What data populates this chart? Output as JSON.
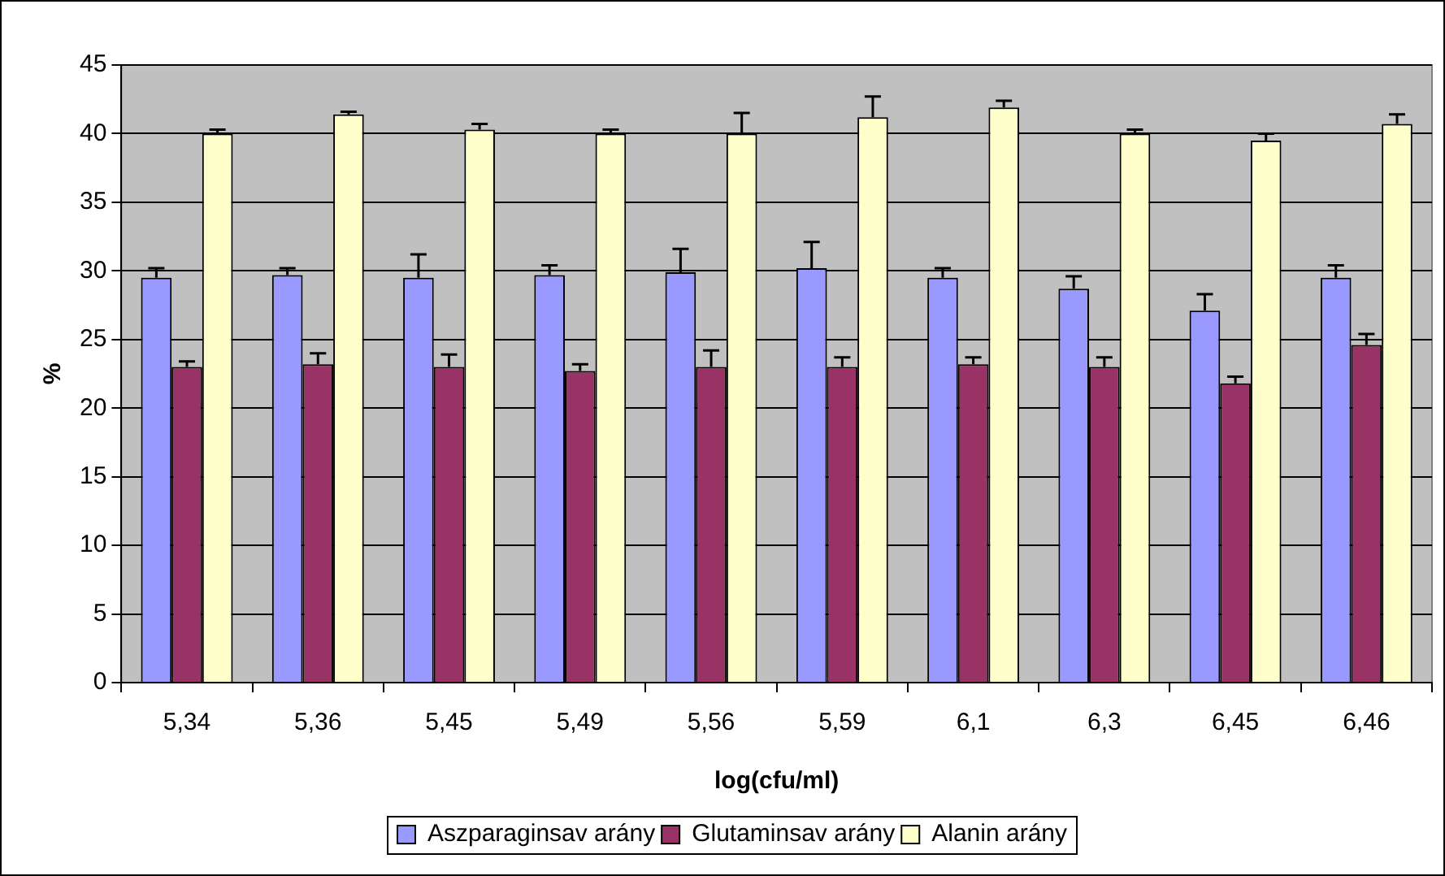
{
  "chart_data": {
    "type": "bar",
    "xlabel": "log(cfu/ml)",
    "ylabel": "%",
    "categories": [
      "5,34",
      "5,36",
      "5,45",
      "5,49",
      "5,56",
      "5,59",
      "6,1",
      "6,3",
      "6,45",
      "6,46"
    ],
    "series": [
      {
        "name": "Aszparaginsav arány",
        "color": "#9999ff",
        "values": [
          29.5,
          29.7,
          29.5,
          29.7,
          29.9,
          30.2,
          29.5,
          28.7,
          27.1,
          29.5
        ],
        "errors": [
          [
            29.5,
            30.2
          ],
          [
            29.7,
            30.2
          ],
          [
            29.5,
            31.2
          ],
          [
            29.7,
            30.4
          ],
          [
            29.9,
            31.6
          ],
          [
            30.2,
            32.1
          ],
          [
            29.5,
            30.2
          ],
          [
            28.7,
            29.6
          ],
          [
            27.1,
            28.3
          ],
          [
            29.5,
            30.4
          ]
        ]
      },
      {
        "name": "Glutaminsav arány",
        "color": "#993366",
        "values": [
          23.0,
          23.2,
          23.0,
          22.7,
          23.0,
          23.0,
          23.2,
          23.0,
          21.8,
          24.6
        ],
        "errors": [
          [
            23.0,
            23.4
          ],
          [
            23.2,
            24.0
          ],
          [
            23.0,
            23.9
          ],
          [
            22.7,
            23.2
          ],
          [
            23.0,
            24.2
          ],
          [
            23.0,
            23.7
          ],
          [
            23.2,
            23.7
          ],
          [
            23.0,
            23.7
          ],
          [
            21.8,
            22.3
          ],
          [
            24.6,
            25.4
          ]
        ]
      },
      {
        "name": "Alanin arány",
        "color": "#ffffcc",
        "values": [
          40.0,
          41.4,
          40.3,
          40.0,
          40.0,
          41.2,
          41.9,
          40.0,
          39.5,
          40.7
        ],
        "errors": [
          [
            40.0,
            40.3
          ],
          [
            41.4,
            41.6
          ],
          [
            40.3,
            40.7
          ],
          [
            40.0,
            40.3
          ],
          [
            40.0,
            41.5
          ],
          [
            41.2,
            42.7
          ],
          [
            41.9,
            42.4
          ],
          [
            40.0,
            40.3
          ],
          [
            39.5,
            40.0
          ],
          [
            40.7,
            41.4
          ]
        ]
      }
    ],
    "ylim": [
      0,
      45
    ],
    "yticks": [
      0,
      5,
      10,
      15,
      20,
      25,
      30,
      35,
      40,
      45
    ],
    "grid": "y",
    "legend": "bottom"
  }
}
